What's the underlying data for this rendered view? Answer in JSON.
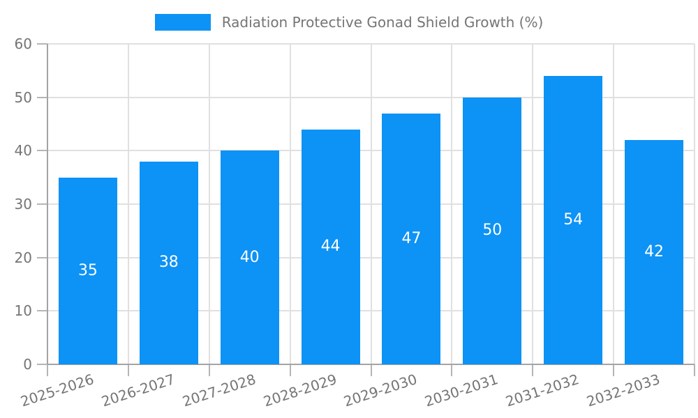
{
  "chart_data": {
    "type": "bar",
    "title": "Radiation Protective Gonad Shield Growth (%)",
    "legend_label": "Radiation Protective Gonad Shield Growth (%)",
    "legend_position": "top-center",
    "categories": [
      "2025-2026",
      "2026-2027",
      "2027-2028",
      "2028-2029",
      "2029-2030",
      "2030-2031",
      "2031-2032",
      "2032-2033"
    ],
    "values": [
      35,
      38,
      40,
      44,
      47,
      50,
      54,
      42
    ],
    "xlabel": "",
    "ylabel": "",
    "ylim": [
      0,
      60
    ],
    "yticks": [
      0,
      10,
      20,
      30,
      40,
      50,
      60
    ],
    "grid": true,
    "x_label_rotation_deg": -18,
    "colors": {
      "bar": "#0d92f5",
      "value_label": "#ffffff",
      "axis_text": "#757575",
      "grid_line": "#e0e0e0",
      "axis_line": "#a3a3a3",
      "tick_mark": "#b5b5b5",
      "background": "#ffffff"
    }
  }
}
